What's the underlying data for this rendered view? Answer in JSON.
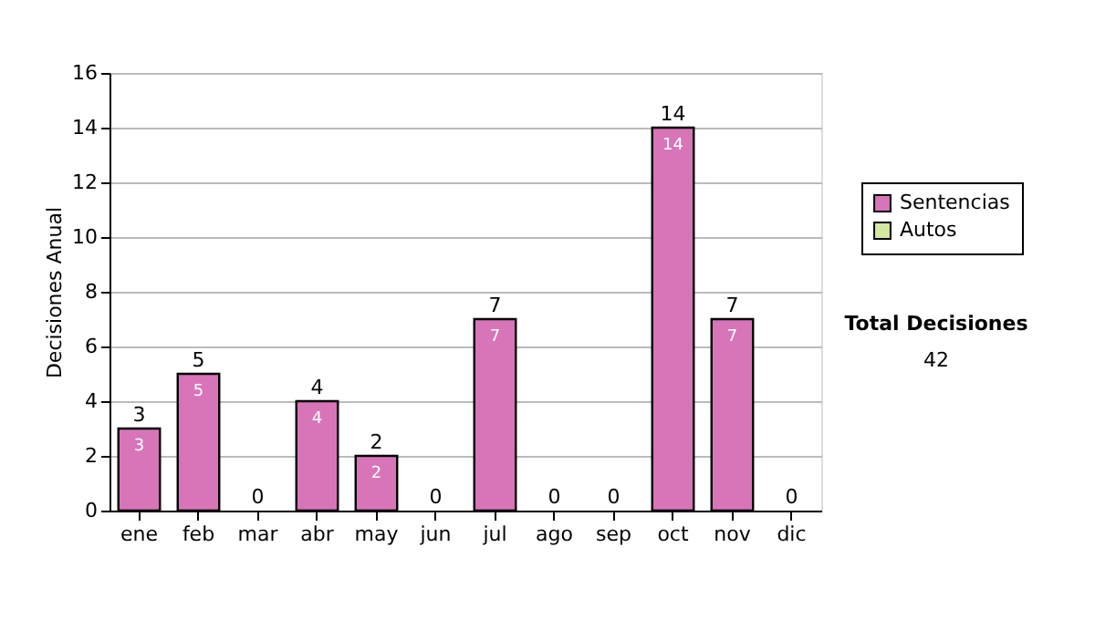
{
  "chart_data": {
    "type": "bar",
    "stacked": true,
    "ylabel": "Decisiones Anual",
    "categories": [
      "ene",
      "feb",
      "mar",
      "abr",
      "may",
      "jun",
      "jul",
      "ago",
      "sep",
      "oct",
      "nov",
      "dic"
    ],
    "series": [
      {
        "name": "Sentencias",
        "color": "#d775b8",
        "values": [
          3,
          5,
          0,
          4,
          2,
          0,
          7,
          0,
          0,
          14,
          7,
          0
        ],
        "value_labels": [
          "3",
          "5",
          null,
          "4",
          "2",
          null,
          "7",
          null,
          null,
          "14",
          "7",
          null
        ]
      },
      {
        "name": "Autos",
        "color": "#d4e8a0",
        "values": [
          0,
          0,
          0,
          0,
          0,
          0,
          0,
          0,
          0,
          0,
          0,
          0
        ]
      }
    ],
    "totals": [
      "3",
      "5",
      "0",
      "4",
      "2",
      "0",
      "7",
      "0",
      "0",
      "14",
      "7",
      "0"
    ],
    "ylim": [
      0,
      16
    ],
    "yticks": [
      0,
      2,
      4,
      6,
      8,
      10,
      12,
      14,
      16
    ],
    "grid": "y",
    "legend": "right",
    "annotations": [
      "Total Decisiones",
      "42"
    ]
  }
}
